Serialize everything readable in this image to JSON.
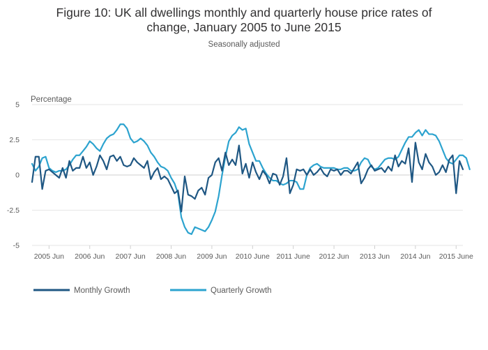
{
  "title_line1": "Figure 10: UK all dwellings monthly and quarterly house price rates of",
  "title_line2": "change, January 2005 to June 2015",
  "subtitle": "Seasonally adjusted",
  "colors": {
    "monthly": "#1f5783",
    "quarterly": "#2ca3cf",
    "grid": "#e6e6e6",
    "zero": "#cfcfcf"
  },
  "chart_data": {
    "type": "line",
    "ylabel": "Percentage",
    "ylim": [
      -5,
      5
    ],
    "yticks": [
      {
        "value": 5,
        "label": "5"
      },
      {
        "value": 2.5,
        "label": "2.5"
      },
      {
        "value": 0,
        "label": "0"
      },
      {
        "value": -2.5,
        "label": "-2.5"
      },
      {
        "value": -5,
        "label": "-5"
      }
    ],
    "xticks": [
      {
        "index": 5,
        "label": "2005 Jun"
      },
      {
        "index": 17,
        "label": "2006 Jun"
      },
      {
        "index": 29,
        "label": "2007 Jun"
      },
      {
        "index": 41,
        "label": "2008 Jun"
      },
      {
        "index": 53,
        "label": "2009 Jun"
      },
      {
        "index": 65,
        "label": "2010 June"
      },
      {
        "index": 77,
        "label": "2011 June"
      },
      {
        "index": 89,
        "label": "2012 Jun"
      },
      {
        "index": 101,
        "label": "2013 Jun"
      },
      {
        "index": 113,
        "label": "2014 Jun"
      },
      {
        "index": 125,
        "label": "2015 June"
      }
    ],
    "x_start": "2005 Jan",
    "x_end": "2015 Jun",
    "series": [
      {
        "name": "Monthly Growth",
        "values": [
          -0.5,
          1.3,
          1.3,
          -1.0,
          0.3,
          0.4,
          0.2,
          0.0,
          -0.2,
          0.5,
          -0.2,
          1.0,
          0.3,
          0.5,
          0.5,
          1.3,
          0.5,
          0.9,
          0.0,
          0.6,
          1.4,
          1.0,
          0.4,
          1.3,
          1.4,
          1.0,
          1.3,
          0.7,
          0.6,
          0.7,
          1.2,
          0.9,
          0.7,
          0.5,
          1.0,
          -0.3,
          0.2,
          0.5,
          -0.3,
          -0.1,
          -0.3,
          -0.8,
          -1.3,
          -1.1,
          -2.6,
          -0.1,
          -1.4,
          -1.5,
          -1.7,
          -1.1,
          -0.9,
          -1.4,
          -0.2,
          0.0,
          0.9,
          1.2,
          0.3,
          1.6,
          0.7,
          1.1,
          0.7,
          2.1,
          0.1,
          0.8,
          -0.2,
          0.9,
          0.2,
          -0.3,
          0.3,
          0.0,
          -0.6,
          0.1,
          0.0,
          -0.7,
          -0.1,
          1.2,
          -1.3,
          -0.7,
          0.4,
          0.3,
          0.4,
          0.0,
          0.4,
          0.0,
          0.2,
          0.5,
          0.1,
          -0.1,
          0.4,
          0.3,
          0.4,
          0.0,
          0.3,
          0.3,
          0.1,
          0.5,
          0.9,
          -0.6,
          -0.2,
          0.4,
          0.7,
          0.3,
          0.4,
          0.5,
          0.2,
          0.6,
          0.3,
          1.4,
          0.6,
          1.0,
          0.8,
          1.9,
          -0.5,
          2.3,
          0.9,
          0.4,
          1.5,
          0.9,
          0.6,
          0.0,
          0.2,
          0.7,
          0.2,
          1.1,
          1.4,
          -1.3,
          1.0,
          0.4
        ]
      },
      {
        "name": "Quarterly Growth",
        "values": [
          0.8,
          0.3,
          0.6,
          1.2,
          1.3,
          0.5,
          0.3,
          0.2,
          0.3,
          0.3,
          0.4,
          0.7,
          1.1,
          1.4,
          1.4,
          1.7,
          2.0,
          2.4,
          2.2,
          1.9,
          1.7,
          2.2,
          2.6,
          2.8,
          2.9,
          3.2,
          3.6,
          3.6,
          3.3,
          2.6,
          2.3,
          2.4,
          2.6,
          2.4,
          2.1,
          1.6,
          1.3,
          0.9,
          0.6,
          0.5,
          0.3,
          -0.2,
          -0.6,
          -1.3,
          -3.0,
          -3.7,
          -4.1,
          -4.2,
          -3.7,
          -3.8,
          -3.9,
          -4.0,
          -3.7,
          -3.2,
          -2.6,
          -1.5,
          0.0,
          1.3,
          2.4,
          2.8,
          3.0,
          3.4,
          3.2,
          3.3,
          2.2,
          1.6,
          1.0,
          1.0,
          0.5,
          0.1,
          -0.2,
          -0.4,
          -0.4,
          -0.6,
          -0.7,
          -0.6,
          -0.4,
          -0.4,
          -0.5,
          -1.0,
          -1.0,
          0.0,
          0.5,
          0.7,
          0.8,
          0.6,
          0.5,
          0.5,
          0.5,
          0.5,
          0.4,
          0.4,
          0.5,
          0.5,
          0.3,
          0.3,
          0.4,
          0.9,
          1.2,
          1.1,
          0.6,
          0.4,
          0.5,
          0.8,
          1.1,
          1.2,
          1.2,
          1.1,
          1.3,
          1.8,
          2.3,
          2.7,
          2.7,
          3.0,
          3.2,
          2.8,
          3.2,
          2.9,
          2.9,
          2.8,
          2.4,
          1.8,
          1.2,
          0.9,
          0.8,
          1.1,
          1.4,
          1.4,
          1.2,
          0.4
        ]
      }
    ],
    "legend_position": "bottom-left",
    "grid": true
  }
}
